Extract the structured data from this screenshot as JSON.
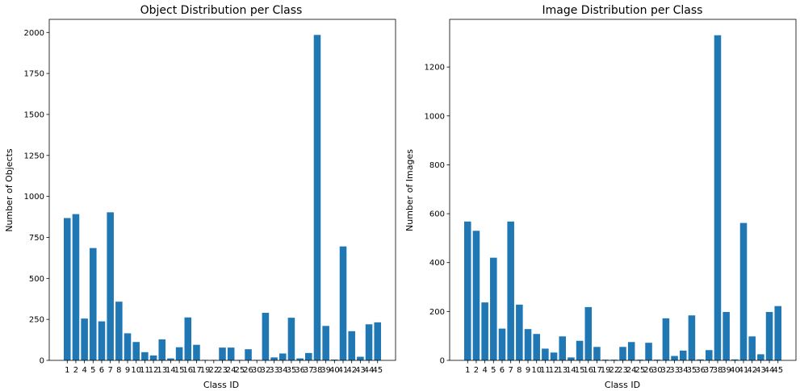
{
  "chart_data": [
    {
      "type": "bar",
      "title": "Object Distribution per Class",
      "xlabel": "Class ID",
      "ylabel": "Number of Objects",
      "ylim": [
        0,
        2080
      ],
      "yticks": [
        0,
        250,
        500,
        750,
        1000,
        1250,
        1500,
        1750,
        2000
      ],
      "color": "#1f77b4",
      "categories": [
        "1",
        "2",
        "4",
        "5",
        "6",
        "7",
        "8",
        "9",
        "10",
        "11",
        "12",
        "13",
        "14",
        "15",
        "16",
        "17",
        "19",
        "22",
        "23",
        "24",
        "25",
        "26",
        "30",
        "32",
        "33",
        "34",
        "35",
        "36",
        "37",
        "38",
        "39",
        "40",
        "41",
        "42",
        "43",
        "44",
        "45"
      ],
      "values": [
        868,
        892,
        255,
        685,
        238,
        903,
        358,
        165,
        112,
        50,
        30,
        128,
        12,
        80,
        262,
        95,
        3,
        3,
        78,
        78,
        3,
        68,
        3,
        290,
        18,
        42,
        260,
        12,
        45,
        1985,
        210,
        5,
        695,
        178,
        22,
        220,
        232
      ]
    },
    {
      "type": "bar",
      "title": "Image Distribution per Class",
      "xlabel": "Class ID",
      "ylabel": "Number of Images",
      "ylim": [
        0,
        1395
      ],
      "yticks": [
        0,
        200,
        400,
        600,
        800,
        1000,
        1200
      ],
      "color": "#1f77b4",
      "categories": [
        "1",
        "2",
        "4",
        "5",
        "6",
        "7",
        "8",
        "9",
        "10",
        "11",
        "12",
        "13",
        "14",
        "15",
        "16",
        "17",
        "19",
        "22",
        "23",
        "24",
        "25",
        "26",
        "30",
        "32",
        "33",
        "34",
        "35",
        "36",
        "37",
        "38",
        "39",
        "40",
        "41",
        "42",
        "43",
        "44",
        "45"
      ],
      "values": [
        568,
        530,
        237,
        420,
        130,
        568,
        228,
        128,
        108,
        48,
        32,
        98,
        12,
        80,
        218,
        55,
        3,
        3,
        55,
        75,
        3,
        72,
        3,
        172,
        18,
        40,
        184,
        4,
        42,
        1330,
        198,
        4,
        562,
        98,
        25,
        198,
        222
      ]
    }
  ]
}
